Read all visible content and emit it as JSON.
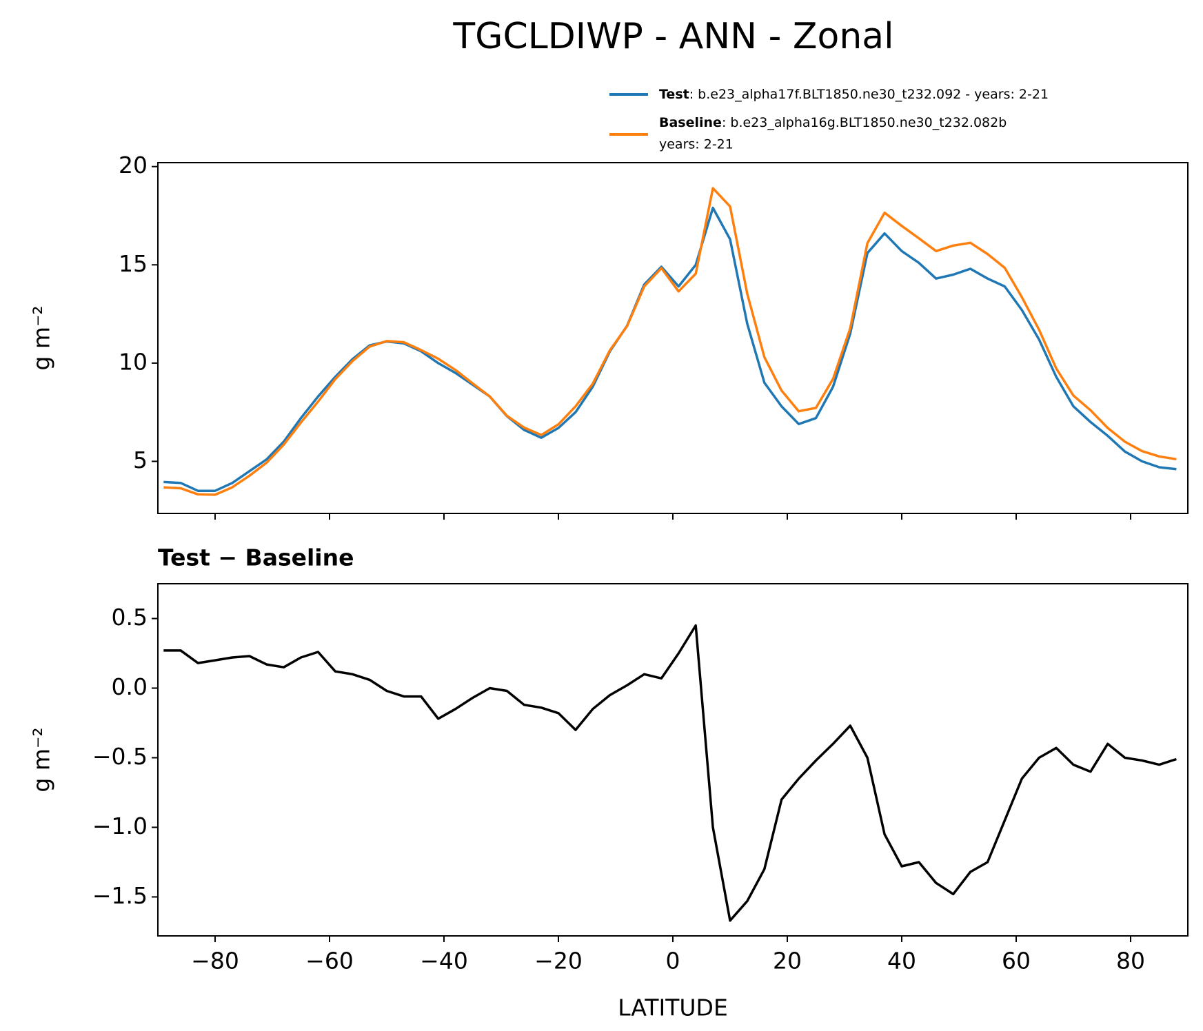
{
  "title": "TGCLDIWP - ANN - Zonal",
  "chart_data": [
    {
      "type": "line",
      "ylabel": "g m⁻²",
      "x": [
        -89,
        -86,
        -83,
        -80,
        -77,
        -74,
        -71,
        -68,
        -65,
        -62,
        -59,
        -56,
        -53,
        -50,
        -47,
        -44,
        -41,
        -38,
        -35,
        -32,
        -29,
        -26,
        -23,
        -20,
        -17,
        -14,
        -11,
        -8,
        -5,
        -2,
        1,
        4,
        7,
        10,
        13,
        16,
        19,
        22,
        25,
        28,
        31,
        34,
        37,
        40,
        43,
        46,
        49,
        52,
        55,
        58,
        61,
        64,
        67,
        70,
        73,
        76,
        79,
        82,
        85,
        88
      ],
      "series": [
        {
          "name": "Test",
          "description": [
            ": b.e23_alpha17f.BLT1850.ne30_t232.092 - years: 2-21"
          ],
          "color": "#1f77b4",
          "values": [
            3.95,
            3.9,
            3.5,
            3.5,
            3.9,
            4.5,
            5.1,
            6.0,
            7.2,
            8.3,
            9.3,
            10.2,
            10.9,
            11.1,
            11.0,
            10.6,
            10.0,
            9.5,
            8.9,
            8.3,
            7.3,
            6.6,
            6.2,
            6.7,
            7.5,
            8.8,
            10.6,
            11.9,
            14.0,
            14.9,
            13.9,
            15.0,
            17.9,
            16.3,
            12.0,
            9.0,
            7.8,
            6.9,
            7.2,
            8.8,
            11.5,
            15.6,
            16.6,
            15.7,
            15.1,
            14.3,
            14.5,
            14.8,
            14.3,
            13.9,
            12.7,
            11.2,
            9.3,
            7.8,
            7.0,
            6.3,
            5.5,
            5.0,
            4.7,
            4.6
          ]
        },
        {
          "name": "Baseline",
          "description": [
            ": b.e23_alpha16g.BLT1850.ne30_t232.082b",
            "years: 2-21"
          ],
          "color": "#ff7f0e",
          "values": [
            3.68,
            3.63,
            3.32,
            3.3,
            3.68,
            4.27,
            4.93,
            5.85,
            6.98,
            8.04,
            9.18,
            10.1,
            10.84,
            11.12,
            11.06,
            10.66,
            10.22,
            9.65,
            8.97,
            8.3,
            7.32,
            6.72,
            6.34,
            6.88,
            7.8,
            8.95,
            10.65,
            11.88,
            13.9,
            14.83,
            13.65,
            14.55,
            18.9,
            17.97,
            13.53,
            10.3,
            8.6,
            7.55,
            7.72,
            9.2,
            11.77,
            16.1,
            17.65,
            16.98,
            16.35,
            15.7,
            15.98,
            16.12,
            15.55,
            14.85,
            13.35,
            11.7,
            9.73,
            8.35,
            7.6,
            6.7,
            6.0,
            5.52,
            5.25,
            5.11
          ]
        }
      ],
      "xlim": [
        -90,
        90
      ],
      "ylim": [
        2.35,
        20.2
      ],
      "xticks": [
        -80,
        -60,
        -40,
        -20,
        0,
        20,
        40,
        60,
        80
      ],
      "yticks": [
        5,
        10,
        15,
        20
      ]
    },
    {
      "type": "line",
      "subtitle": "Test − Baseline",
      "ylabel": "g m⁻²",
      "xlabel": "LATITUDE",
      "x": [
        -89,
        -86,
        -83,
        -80,
        -77,
        -74,
        -71,
        -68,
        -65,
        -62,
        -59,
        -56,
        -53,
        -50,
        -47,
        -44,
        -41,
        -38,
        -35,
        -32,
        -29,
        -26,
        -23,
        -20,
        -17,
        -14,
        -11,
        -8,
        -5,
        -2,
        1,
        4,
        7,
        10,
        13,
        16,
        19,
        22,
        25,
        28,
        31,
        34,
        37,
        40,
        43,
        46,
        49,
        52,
        55,
        58,
        61,
        64,
        67,
        70,
        73,
        76,
        79,
        82,
        85,
        88
      ],
      "series": [
        {
          "color": "#000000",
          "values": [
            0.27,
            0.27,
            0.18,
            0.2,
            0.22,
            0.23,
            0.17,
            0.15,
            0.22,
            0.26,
            0.12,
            0.1,
            0.06,
            -0.02,
            -0.06,
            -0.06,
            -0.22,
            -0.15,
            -0.07,
            0.0,
            -0.02,
            -0.12,
            -0.14,
            -0.18,
            -0.3,
            -0.15,
            -0.05,
            0.02,
            0.1,
            0.07,
            0.25,
            0.45,
            -1.0,
            -1.67,
            -1.53,
            -1.3,
            -0.8,
            -0.65,
            -0.52,
            -0.4,
            -0.27,
            -0.5,
            -1.05,
            -1.28,
            -1.25,
            -1.4,
            -1.48,
            -1.32,
            -1.25,
            -0.95,
            -0.65,
            -0.5,
            -0.43,
            -0.55,
            -0.6,
            -0.4,
            -0.5,
            -0.52,
            -0.55,
            -0.51
          ]
        }
      ],
      "xlim": [
        -90,
        90
      ],
      "ylim": [
        -1.78,
        0.75
      ],
      "xticks": [
        {
          "value": -80,
          "label": "−80"
        },
        {
          "value": -60,
          "label": "−60"
        },
        {
          "value": -40,
          "label": "−40"
        },
        {
          "value": -20,
          "label": "−20"
        },
        0,
        20,
        40,
        60,
        80
      ],
      "yticks": [
        0.5,
        {
          "value": 0.0,
          "label": "0.0"
        },
        {
          "value": -0.5,
          "label": "−0.5"
        },
        {
          "value": -1.0,
          "label": "−1.0"
        },
        {
          "value": -1.5,
          "label": "−1.5"
        }
      ]
    }
  ]
}
